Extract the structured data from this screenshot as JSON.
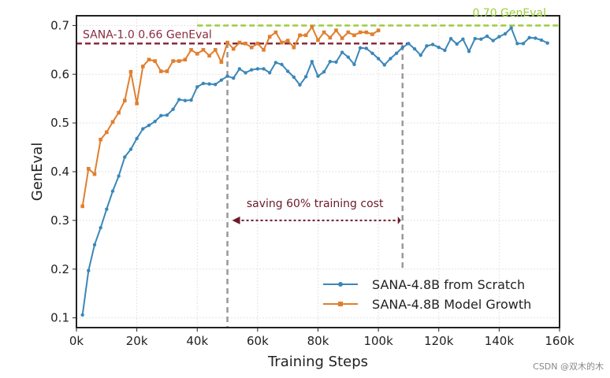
{
  "chart_data": {
    "type": "line",
    "xlabel": "Training Steps",
    "ylabel": "GenEval",
    "xlim": [
      0,
      160000
    ],
    "ylim": [
      0.08,
      0.72
    ],
    "xticks": [
      0,
      20000,
      40000,
      60000,
      80000,
      100000,
      120000,
      140000,
      160000
    ],
    "xtick_labels": [
      "0k",
      "20k",
      "40k",
      "60k",
      "80k",
      "100k",
      "120k",
      "140k",
      "160k"
    ],
    "yticks": [
      0.1,
      0.2,
      0.3,
      0.4,
      0.5,
      0.6,
      0.7
    ],
    "ytick_labels": [
      "0.1",
      "0.2",
      "0.3",
      "0.4",
      "0.5",
      "0.6",
      "0.7"
    ],
    "grid": true,
    "legend_position": "bottom-right",
    "series": [
      {
        "name": "SANA-4.8B from Scratch",
        "color": "#3a87b8",
        "x": [
          2000,
          4000,
          6000,
          8000,
          10000,
          12000,
          14000,
          16000,
          18000,
          20000,
          22000,
          24000,
          26000,
          28000,
          30000,
          32000,
          34000,
          36000,
          38000,
          40000,
          42000,
          44000,
          46000,
          48000,
          50000,
          52000,
          54000,
          56000,
          58000,
          60000,
          62000,
          64000,
          66000,
          68000,
          70000,
          72000,
          74000,
          76000,
          78000,
          80000,
          82000,
          84000,
          86000,
          88000,
          90000,
          92000,
          94000,
          96000,
          98000,
          100000,
          102000,
          104000,
          106000,
          108000,
          110000,
          112000,
          114000,
          116000,
          118000,
          120000,
          122000,
          124000,
          126000,
          128000,
          130000,
          132000,
          134000,
          136000,
          138000,
          140000,
          142000,
          144000,
          146000,
          148000,
          150000,
          152000,
          154000,
          156000
        ],
        "y": [
          0.106,
          0.197,
          0.25,
          0.285,
          0.323,
          0.36,
          0.391,
          0.43,
          0.446,
          0.468,
          0.488,
          0.495,
          0.503,
          0.515,
          0.516,
          0.528,
          0.548,
          0.546,
          0.547,
          0.574,
          0.581,
          0.58,
          0.579,
          0.588,
          0.596,
          0.592,
          0.611,
          0.603,
          0.609,
          0.611,
          0.611,
          0.603,
          0.624,
          0.62,
          0.606,
          0.594,
          0.578,
          0.595,
          0.626,
          0.596,
          0.605,
          0.626,
          0.625,
          0.645,
          0.635,
          0.62,
          0.654,
          0.653,
          0.643,
          0.632,
          0.619,
          0.632,
          0.643,
          0.655,
          0.663,
          0.652,
          0.639,
          0.658,
          0.661,
          0.655,
          0.649,
          0.673,
          0.662,
          0.672,
          0.647,
          0.673,
          0.672,
          0.678,
          0.669,
          0.677,
          0.683,
          0.695,
          0.663,
          0.663,
          0.675,
          0.674,
          0.67,
          0.664
        ]
      },
      {
        "name": "SANA-4.8B Model Growth",
        "color": "#e07f2e",
        "x": [
          2000,
          4000,
          6000,
          8000,
          10000,
          12000,
          14000,
          16000,
          18000,
          20000,
          22000,
          24000,
          26000,
          28000,
          30000,
          32000,
          34000,
          36000,
          38000,
          40000,
          42000,
          44000,
          46000,
          48000,
          50000,
          52000,
          54000,
          56000,
          58000,
          60000,
          62000,
          64000,
          66000,
          68000,
          70000,
          72000,
          74000,
          76000,
          78000,
          80000,
          82000,
          84000,
          86000,
          88000,
          90000,
          92000,
          94000,
          96000,
          98000,
          100000
        ],
        "y": [
          0.329,
          0.406,
          0.395,
          0.466,
          0.481,
          0.502,
          0.521,
          0.546,
          0.605,
          0.54,
          0.616,
          0.63,
          0.627,
          0.606,
          0.606,
          0.627,
          0.627,
          0.63,
          0.65,
          0.642,
          0.65,
          0.638,
          0.65,
          0.625,
          0.665,
          0.652,
          0.665,
          0.663,
          0.655,
          0.663,
          0.65,
          0.677,
          0.686,
          0.665,
          0.669,
          0.655,
          0.68,
          0.68,
          0.697,
          0.67,
          0.686,
          0.675,
          0.69,
          0.674,
          0.686,
          0.68,
          0.686,
          0.686,
          0.682,
          0.69
        ]
      }
    ],
    "reference_lines": [
      {
        "name": "SANA-1.0 0.66 GenEval",
        "y": 0.663,
        "x_start": 0,
        "x_end": 110000,
        "color": "#8b2a3f"
      },
      {
        "name": "0.70 GenEval",
        "y": 0.7,
        "x_start": 40000,
        "x_end": 160000,
        "color": "#9dcc3f"
      }
    ],
    "vertical_markers": [
      {
        "x": 50000,
        "y_top": 0.665,
        "color": "#999999"
      },
      {
        "x": 108000,
        "y_top": 0.66,
        "y_bottom": 0.2,
        "color": "#999999"
      }
    ],
    "annotation": {
      "text": "saving 60% training cost",
      "arrow_from_x": 50000,
      "arrow_to_x": 108000,
      "arrow_y": 0.3,
      "color": "#6b1a2b"
    }
  },
  "watermark": "CSDN @双木的木"
}
